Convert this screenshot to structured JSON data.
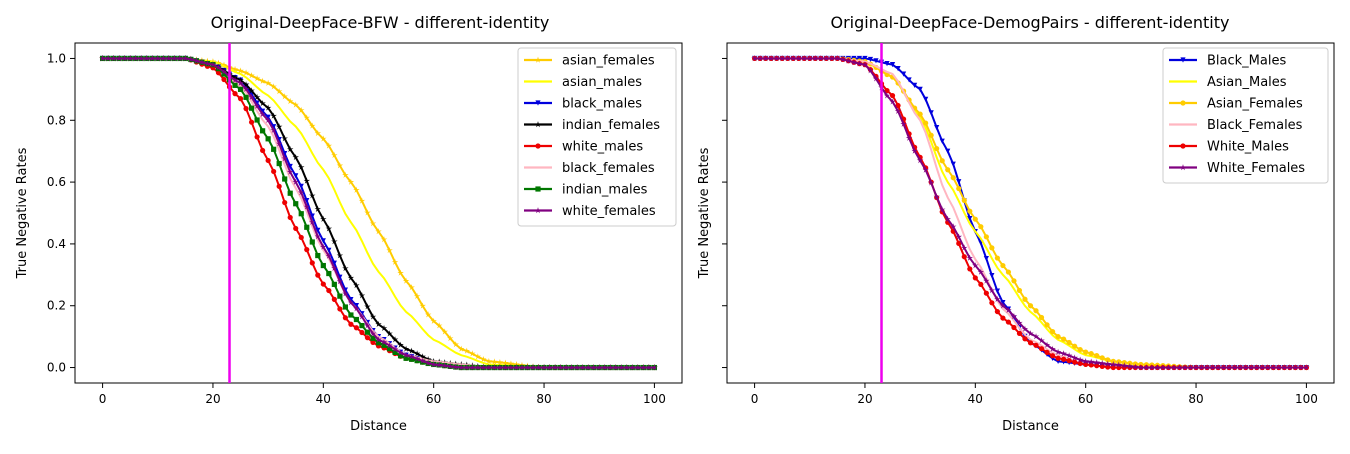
{
  "chart_data": [
    {
      "type": "line",
      "title": "Original-DeepFace-BFW - different-identity",
      "xlabel": "Distance",
      "ylabel": "True Negative Rates",
      "xlim": [
        -5,
        105
      ],
      "ylim": [
        -0.05,
        1.05
      ],
      "xticks": [
        0,
        20,
        40,
        60,
        80,
        100
      ],
      "yticks": [
        0.0,
        0.2,
        0.4,
        0.6,
        0.8,
        1.0
      ],
      "threshold": 23,
      "threshold_color": "#ee00ee",
      "legend_position": "top-right",
      "series": [
        {
          "name": "asian_females",
          "color": "#ffcc00",
          "marker": "star",
          "x": [
            0,
            15,
            20,
            25,
            30,
            35,
            40,
            45,
            50,
            55,
            60,
            65,
            70,
            80,
            100
          ],
          "values": [
            1.0,
            1.0,
            0.99,
            0.96,
            0.92,
            0.85,
            0.74,
            0.6,
            0.44,
            0.28,
            0.15,
            0.06,
            0.02,
            0.0,
            0.0
          ]
        },
        {
          "name": "asian_males",
          "color": "#ffff00",
          "marker": "none",
          "x": [
            0,
            15,
            20,
            25,
            30,
            35,
            40,
            45,
            50,
            55,
            60,
            65,
            70,
            80,
            100
          ],
          "values": [
            1.0,
            1.0,
            0.99,
            0.95,
            0.88,
            0.78,
            0.64,
            0.47,
            0.31,
            0.18,
            0.09,
            0.04,
            0.01,
            0.0,
            0.0
          ]
        },
        {
          "name": "black_males",
          "color": "#0000dd",
          "marker": "triangle",
          "x": [
            0,
            15,
            20,
            25,
            30,
            35,
            40,
            45,
            50,
            55,
            60,
            65,
            70,
            80,
            100
          ],
          "values": [
            1.0,
            1.0,
            0.98,
            0.93,
            0.81,
            0.62,
            0.41,
            0.22,
            0.1,
            0.04,
            0.01,
            0.0,
            0.0,
            0.0,
            0.0
          ]
        },
        {
          "name": "indian_females",
          "color": "#000000",
          "marker": "star",
          "x": [
            0,
            15,
            20,
            25,
            30,
            35,
            40,
            45,
            50,
            55,
            60,
            65,
            70,
            80,
            100
          ],
          "values": [
            1.0,
            1.0,
            0.98,
            0.93,
            0.84,
            0.68,
            0.48,
            0.29,
            0.14,
            0.06,
            0.02,
            0.01,
            0.0,
            0.0,
            0.0
          ]
        },
        {
          "name": "white_males",
          "color": "#ee0000",
          "marker": "circle",
          "x": [
            0,
            15,
            20,
            25,
            30,
            35,
            40,
            45,
            50,
            55,
            60,
            65,
            70,
            80,
            100
          ],
          "values": [
            1.0,
            1.0,
            0.97,
            0.87,
            0.67,
            0.45,
            0.27,
            0.14,
            0.07,
            0.03,
            0.01,
            0.0,
            0.0,
            0.0,
            0.0
          ]
        },
        {
          "name": "black_females",
          "color": "#ffb6c1",
          "marker": "none",
          "x": [
            0,
            15,
            20,
            25,
            30,
            35,
            40,
            45,
            50,
            55,
            60,
            65,
            70,
            80,
            100
          ],
          "values": [
            1.0,
            1.0,
            0.98,
            0.91,
            0.78,
            0.58,
            0.38,
            0.21,
            0.1,
            0.04,
            0.02,
            0.01,
            0.0,
            0.0,
            0.0
          ]
        },
        {
          "name": "indian_males",
          "color": "#007700",
          "marker": "square",
          "x": [
            0,
            15,
            20,
            25,
            30,
            35,
            40,
            45,
            50,
            55,
            60,
            65,
            70,
            80,
            100
          ],
          "values": [
            1.0,
            1.0,
            0.98,
            0.9,
            0.74,
            0.53,
            0.33,
            0.17,
            0.08,
            0.03,
            0.01,
            0.0,
            0.0,
            0.0,
            0.0
          ]
        },
        {
          "name": "white_females",
          "color": "#800080",
          "marker": "star",
          "x": [
            0,
            15,
            20,
            25,
            30,
            35,
            40,
            45,
            50,
            55,
            60,
            65,
            70,
            80,
            100
          ],
          "values": [
            1.0,
            1.0,
            0.98,
            0.92,
            0.8,
            0.6,
            0.39,
            0.21,
            0.09,
            0.04,
            0.01,
            0.0,
            0.0,
            0.0,
            0.0
          ]
        }
      ]
    },
    {
      "type": "line",
      "title": "Original-DeepFace-DemogPairs - different-identity",
      "xlabel": "Distance",
      "ylabel": "True Negative Rates",
      "xlim": [
        -5,
        105
      ],
      "ylim": [
        -0.05,
        1.05
      ],
      "xticks": [
        0,
        20,
        40,
        60,
        80,
        100
      ],
      "yticks": [
        0.0,
        0.2,
        0.4,
        0.6,
        0.8,
        1.0
      ],
      "threshold": 23,
      "threshold_color": "#ee00ee",
      "legend_position": "top-right",
      "series": [
        {
          "name": "Black_Males",
          "color": "#0000dd",
          "marker": "triangle",
          "x": [
            0,
            15,
            20,
            25,
            30,
            35,
            40,
            45,
            50,
            55,
            60,
            65,
            70,
            80,
            100
          ],
          "values": [
            1.0,
            1.0,
            1.0,
            0.98,
            0.9,
            0.7,
            0.44,
            0.21,
            0.08,
            0.02,
            0.01,
            0.0,
            0.0,
            0.0,
            0.0
          ]
        },
        {
          "name": "Asian_Males",
          "color": "#ffff00",
          "marker": "none",
          "x": [
            0,
            15,
            20,
            25,
            30,
            35,
            40,
            45,
            50,
            55,
            60,
            65,
            70,
            80,
            100
          ],
          "values": [
            1.0,
            1.0,
            0.99,
            0.94,
            0.81,
            0.6,
            0.44,
            0.3,
            0.18,
            0.09,
            0.04,
            0.02,
            0.01,
            0.0,
            0.0
          ]
        },
        {
          "name": "Asian_Females",
          "color": "#ffcc00",
          "marker": "circle",
          "x": [
            0,
            15,
            20,
            25,
            30,
            35,
            40,
            45,
            50,
            55,
            60,
            65,
            70,
            80,
            100
          ],
          "values": [
            1.0,
            1.0,
            0.99,
            0.94,
            0.82,
            0.64,
            0.48,
            0.33,
            0.2,
            0.1,
            0.05,
            0.02,
            0.01,
            0.0,
            0.0
          ]
        },
        {
          "name": "Black_Females",
          "color": "#ffb6c1",
          "marker": "none",
          "x": [
            0,
            15,
            20,
            25,
            30,
            35,
            40,
            45,
            50,
            55,
            60,
            65,
            70,
            80,
            100
          ],
          "values": [
            1.0,
            1.0,
            0.99,
            0.95,
            0.8,
            0.55,
            0.35,
            0.19,
            0.09,
            0.04,
            0.01,
            0.0,
            0.0,
            0.0,
            0.0
          ]
        },
        {
          "name": "White_Males",
          "color": "#ee0000",
          "marker": "circle",
          "x": [
            0,
            15,
            20,
            25,
            30,
            35,
            40,
            45,
            50,
            55,
            60,
            65,
            70,
            80,
            100
          ],
          "values": [
            1.0,
            1.0,
            0.98,
            0.88,
            0.68,
            0.47,
            0.29,
            0.16,
            0.08,
            0.03,
            0.01,
            0.0,
            0.0,
            0.0,
            0.0
          ]
        },
        {
          "name": "White_Females",
          "color": "#800080",
          "marker": "star",
          "x": [
            0,
            15,
            20,
            25,
            30,
            35,
            40,
            45,
            50,
            55,
            60,
            65,
            70,
            80,
            100
          ],
          "values": [
            1.0,
            1.0,
            0.98,
            0.86,
            0.67,
            0.48,
            0.33,
            0.2,
            0.11,
            0.05,
            0.02,
            0.01,
            0.0,
            0.0,
            0.0
          ]
        }
      ]
    }
  ]
}
